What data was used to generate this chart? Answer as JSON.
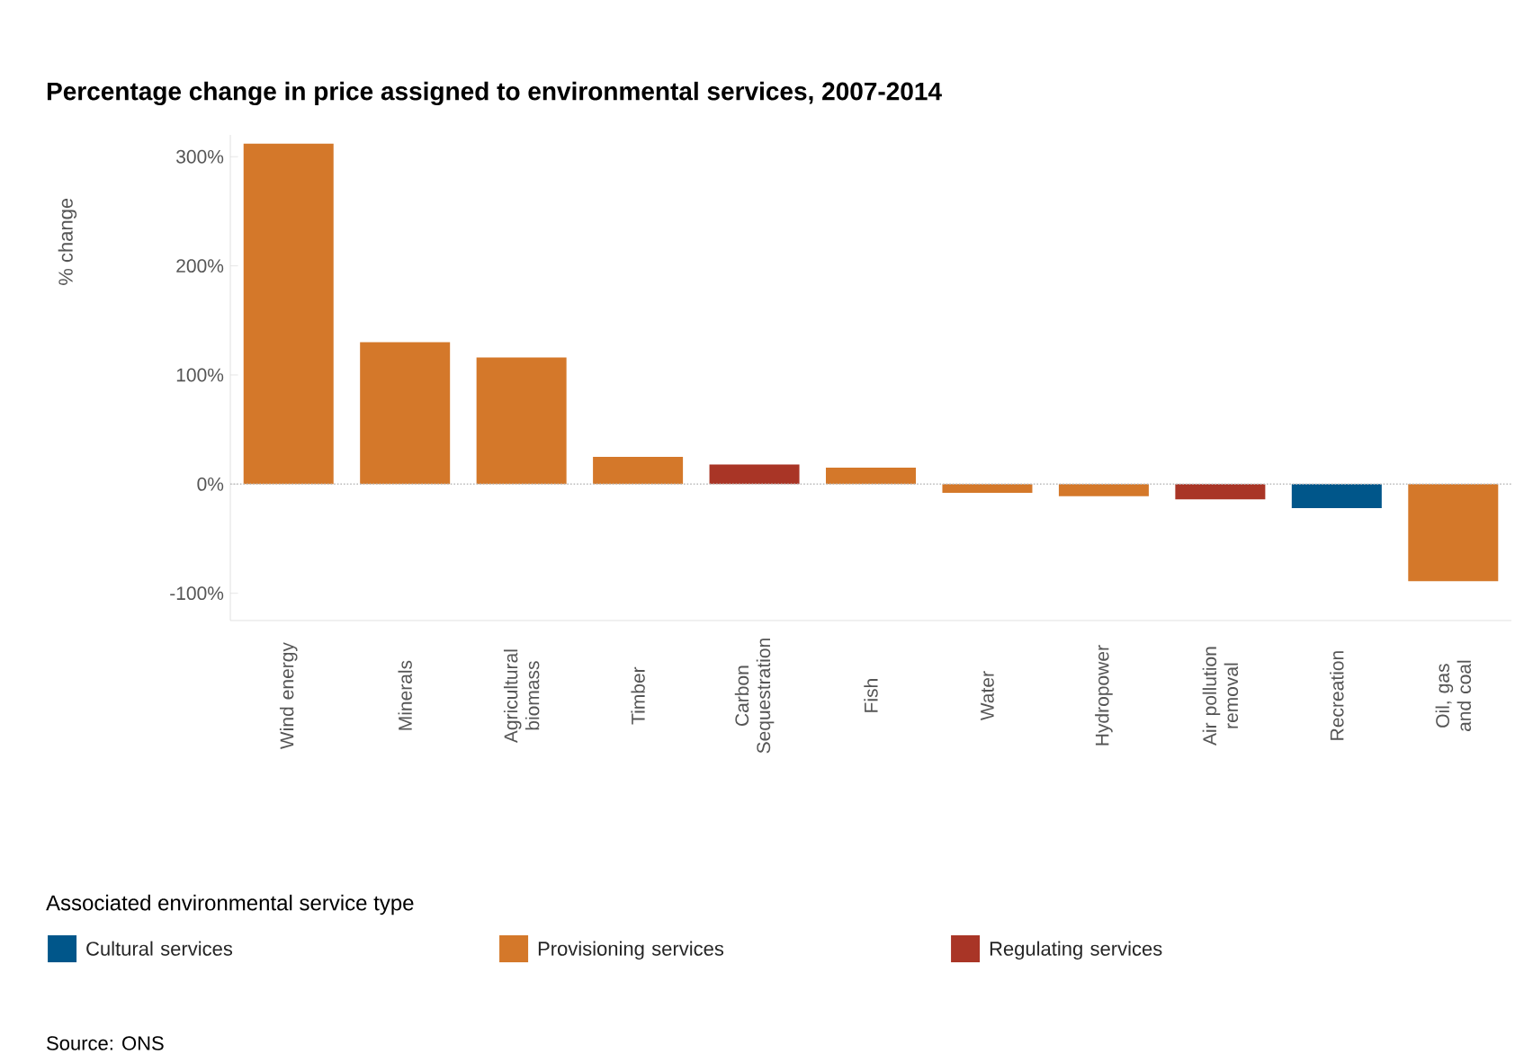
{
  "chart_data": {
    "type": "bar",
    "title": "Percentage change in price assigned to environmental services, 2007-2014",
    "ylabel": "% change",
    "legend_title": "Associated environmental service type",
    "categories": [
      "Wind energy",
      "Minerals",
      "Agricultural biomass",
      "Timber",
      "Carbon Sequestration",
      "Fish",
      "Water",
      "Hydropower",
      "Air pollution removal",
      "Recreation",
      "Oil, gas and coal"
    ],
    "series": [
      {
        "name": "Cultural services",
        "color": "#00568a",
        "values": [
          null,
          null,
          null,
          null,
          null,
          null,
          null,
          null,
          null,
          -22,
          null
        ]
      },
      {
        "name": "Provisioning services",
        "color": "#d4782a",
        "values": [
          312,
          130,
          116,
          25,
          null,
          15,
          -8,
          -11,
          null,
          null,
          -89
        ]
      },
      {
        "name": "Regulating services",
        "color": "#a93526",
        "values": [
          null,
          null,
          null,
          null,
          18,
          null,
          null,
          null,
          -14,
          null,
          null
        ]
      }
    ],
    "ylim": [
      -125,
      320
    ],
    "yticks": [
      {
        "value": -100,
        "label": "-100%"
      },
      {
        "value": 0,
        "label": "0%"
      },
      {
        "value": 100,
        "label": "100%"
      },
      {
        "value": 200,
        "label": "200%"
      },
      {
        "value": 300,
        "label": "300%"
      }
    ],
    "ref_lines": [
      {
        "axis": "y",
        "value": 0,
        "line_style": "dotted",
        "color": "#bbbbbb"
      }
    ],
    "grid": false,
    "legend": "bottom",
    "annotations": [
      "Source: ONS"
    ]
  }
}
